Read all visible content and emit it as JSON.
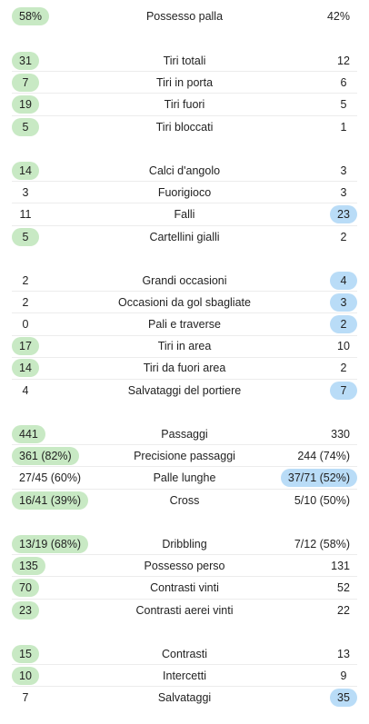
{
  "colors": {
    "home_highlight": "#c8e9c4",
    "away_highlight": "#b9dcf7",
    "divider": "#ececec"
  },
  "groups": [
    {
      "rows": [
        {
          "label": "Possesso palla",
          "home": "58%",
          "away": "42%",
          "winner": "home"
        }
      ]
    },
    {
      "rows": [
        {
          "label": "Tiri totali",
          "home": "31",
          "away": "12",
          "winner": "home"
        },
        {
          "label": "Tiri in porta",
          "home": "7",
          "away": "6",
          "winner": "home"
        },
        {
          "label": "Tiri fuori",
          "home": "19",
          "away": "5",
          "winner": "home"
        },
        {
          "label": "Tiri bloccati",
          "home": "5",
          "away": "1",
          "winner": "home"
        }
      ]
    },
    {
      "rows": [
        {
          "label": "Calci d'angolo",
          "home": "14",
          "away": "3",
          "winner": "home"
        },
        {
          "label": "Fuorigioco",
          "home": "3",
          "away": "3",
          "winner": "none"
        },
        {
          "label": "Falli",
          "home": "11",
          "away": "23",
          "winner": "away"
        },
        {
          "label": "Cartellini gialli",
          "home": "5",
          "away": "2",
          "winner": "home"
        }
      ]
    },
    {
      "rows": [
        {
          "label": "Grandi occasioni",
          "home": "2",
          "away": "4",
          "winner": "away"
        },
        {
          "label": "Occasioni da gol sbagliate",
          "home": "2",
          "away": "3",
          "winner": "away"
        },
        {
          "label": "Pali e traverse",
          "home": "0",
          "away": "2",
          "winner": "away"
        },
        {
          "label": "Tiri in area",
          "home": "17",
          "away": "10",
          "winner": "home"
        },
        {
          "label": "Tiri da fuori area",
          "home": "14",
          "away": "2",
          "winner": "home"
        },
        {
          "label": "Salvataggi del portiere",
          "home": "4",
          "away": "7",
          "winner": "away"
        }
      ]
    },
    {
      "rows": [
        {
          "label": "Passaggi",
          "home": "441",
          "away": "330",
          "winner": "home"
        },
        {
          "label": "Precisione passaggi",
          "home": "361 (82%)",
          "away": "244 (74%)",
          "winner": "home"
        },
        {
          "label": "Palle lunghe",
          "home": "27/45 (60%)",
          "away": "37/71 (52%)",
          "winner": "away"
        },
        {
          "label": "Cross",
          "home": "16/41 (39%)",
          "away": "5/10 (50%)",
          "winner": "home"
        }
      ]
    },
    {
      "rows": [
        {
          "label": "Dribbling",
          "home": "13/19 (68%)",
          "away": "7/12 (58%)",
          "winner": "home"
        },
        {
          "label": "Possesso perso",
          "home": "135",
          "away": "131",
          "winner": "home"
        },
        {
          "label": "Contrasti vinti",
          "home": "70",
          "away": "52",
          "winner": "home"
        },
        {
          "label": "Contrasti aerei vinti",
          "home": "23",
          "away": "22",
          "winner": "home"
        }
      ]
    },
    {
      "rows": [
        {
          "label": "Contrasti",
          "home": "15",
          "away": "13",
          "winner": "home"
        },
        {
          "label": "Intercetti",
          "home": "10",
          "away": "9",
          "winner": "home"
        },
        {
          "label": "Salvataggi",
          "home": "7",
          "away": "35",
          "winner": "away"
        }
      ]
    }
  ]
}
